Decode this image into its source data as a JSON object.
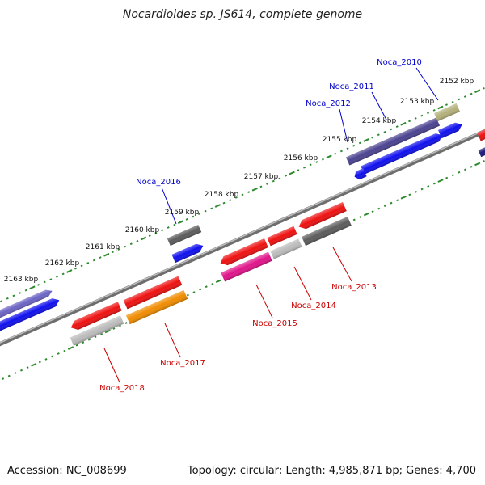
{
  "title": "Nocardioides sp. JS614, complete genome",
  "footer": {
    "accession": "Accession: NC_008699",
    "summary": "Topology: circular; Length: 4,985,871 bp; Genes: 4,700"
  },
  "colors": {
    "forward_label": "#0000cc",
    "reverse_label": "#cc0000",
    "backbone": "#8a8a8a",
    "tick_dot": "#2d8a2d"
  },
  "kbp_ticks": [
    "2152 kbp",
    "2153 kbp",
    "2154 kbp",
    "2155 kbp",
    "2156 kbp",
    "2157 kbp",
    "2158 kbp",
    "2159 kbp",
    "2160 kbp",
    "2161 kbp",
    "2162 kbp",
    "2163 kbp"
  ],
  "forward_labels": [
    "Noca_2010",
    "Noca_2011",
    "Noca_2012",
    "Noca_2016"
  ],
  "reverse_labels": [
    "Noca_2013",
    "Noca_2014",
    "Noca_2015",
    "Noca_2017",
    "Noca_2018"
  ],
  "gene_colors": {
    "blue": "#1010ee",
    "navy": "#1a1a7a",
    "slate": "#4b4390",
    "khaki": "#b4b07a",
    "gray": "#5c5c5c",
    "red": "#ee1111",
    "silver": "#bbbbbb",
    "magenta": "#e0148a",
    "orange": "#f08c00",
    "periwinkle": "#6c64c4"
  }
}
